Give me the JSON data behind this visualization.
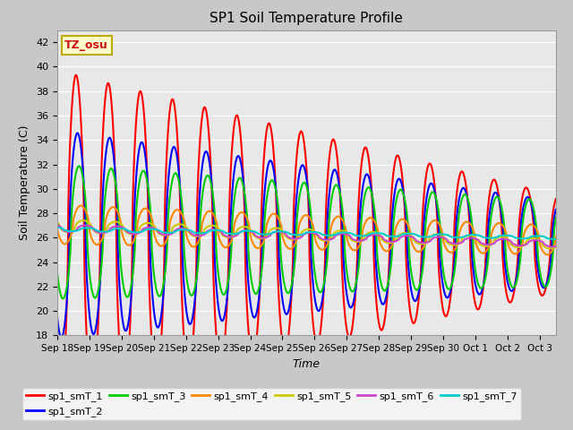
{
  "title": "SP1 Soil Temperature Profile",
  "xlabel": "Time",
  "ylabel": "Soil Temperature (C)",
  "annotation": "TZ_osu",
  "annotation_bg": "#ffffcc",
  "annotation_border": "#bbaa00",
  "annotation_text_color": "#cc1111",
  "fig_bg_color": "#c8c8c8",
  "plot_bg_color": "#e8e8e8",
  "ylim": [
    18,
    43
  ],
  "yticks": [
    18,
    20,
    22,
    24,
    26,
    28,
    30,
    32,
    34,
    36,
    38,
    40,
    42
  ],
  "series_names": [
    "sp1_smT_1",
    "sp1_smT_2",
    "sp1_smT_3",
    "sp1_smT_4",
    "sp1_smT_5",
    "sp1_smT_6",
    "sp1_smT_7"
  ],
  "series_colors": [
    "#ff0000",
    "#0000ff",
    "#00cc00",
    "#ff8800",
    "#cccc00",
    "#cc44cc",
    "#00cccc"
  ],
  "series_lw": [
    1.5,
    1.5,
    1.5,
    1.5,
    1.5,
    1.5,
    1.5
  ],
  "amp_start": [
    13.5,
    8.5,
    5.5,
    1.6,
    0.5,
    0.3,
    0.15
  ],
  "amp_end": [
    4.0,
    3.5,
    3.5,
    1.2,
    0.4,
    0.25,
    0.12
  ],
  "cen_start": [
    26.2,
    26.3,
    26.5,
    27.1,
    27.0,
    26.8,
    26.7
  ],
  "cen_end": [
    25.5,
    25.5,
    25.5,
    25.8,
    25.5,
    25.5,
    26.0
  ],
  "phase_lag": [
    0.0,
    0.28,
    0.58,
    0.95,
    1.45,
    1.85,
    2.25
  ],
  "total_days": 15.5,
  "x_labels": [
    "Sep 18",
    "Sep 19",
    "Sep 20",
    "Sep 21",
    "Sep 22",
    "Sep 23",
    "Sep 24",
    "Sep 25",
    "Sep 26",
    "Sep 27",
    "Sep 28",
    "Sep 29",
    "Sep 30",
    "Oct 1",
    "Oct 2",
    "Oct 3"
  ]
}
